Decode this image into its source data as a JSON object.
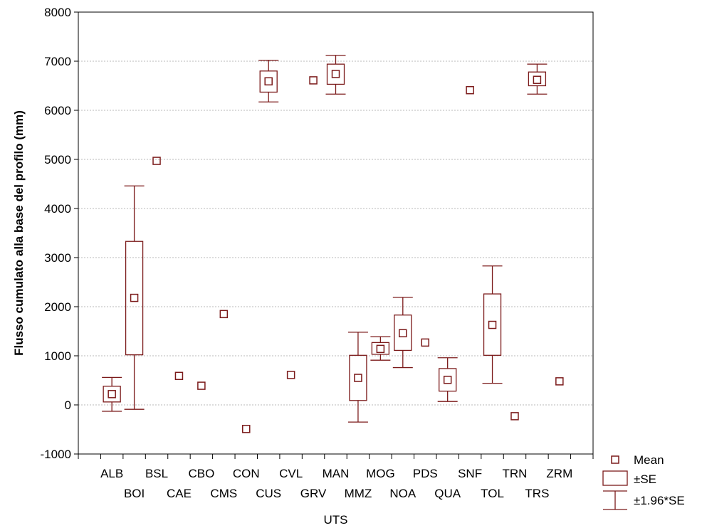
{
  "chart_data": {
    "type": "box",
    "xlabel": "UTS",
    "ylabel": "Flusso cumulato alla base del profilo (mm)",
    "ylim": [
      -1000,
      8000
    ],
    "yticks": [
      -1000,
      0,
      1000,
      2000,
      3000,
      4000,
      5000,
      6000,
      7000,
      8000
    ],
    "grid": true,
    "legend_position": "bottom-right",
    "legend": [
      {
        "label": "Mean",
        "symbol": "square"
      },
      {
        "label": "±SE",
        "symbol": "box"
      },
      {
        "label": "±1.96*SE",
        "symbol": "whisker"
      }
    ],
    "colors": {
      "series": "#7b1a1a",
      "grid": "#b8b8b8"
    },
    "categories": [
      "ALB",
      "BOI",
      "BSL",
      "CAE",
      "CBO",
      "CMS",
      "CON",
      "CUS",
      "CVL",
      "GRV",
      "MAN",
      "MMZ",
      "MOG",
      "NOA",
      "PDS",
      "QUA",
      "SNF",
      "TOL",
      "TRN",
      "TRS",
      "ZRM"
    ],
    "series": [
      {
        "values": [
          {
            "mean": 220,
            "se_low": 60,
            "se_high": 380,
            "ci_low": -130,
            "ci_high": 560
          },
          {
            "mean": 2180,
            "se_low": 1020,
            "se_high": 3330,
            "ci_low": -90,
            "ci_high": 4460
          },
          {
            "mean": 4970
          },
          {
            "mean": 590
          },
          {
            "mean": 390
          },
          {
            "mean": 1850
          },
          {
            "mean": -490
          },
          {
            "mean": 6590,
            "se_low": 6370,
            "se_high": 6800,
            "ci_low": 6170,
            "ci_high": 7020
          },
          {
            "mean": 610
          },
          {
            "mean": 6610
          },
          {
            "mean": 6740,
            "se_low": 6530,
            "se_high": 6940,
            "ci_low": 6330,
            "ci_high": 7120
          },
          {
            "mean": 550,
            "se_low": 90,
            "se_high": 1010,
            "ci_low": -350,
            "ci_high": 1480
          },
          {
            "mean": 1140,
            "se_low": 1030,
            "se_high": 1270,
            "ci_low": 910,
            "ci_high": 1390
          },
          {
            "mean": 1460,
            "se_low": 1110,
            "se_high": 1830,
            "ci_low": 760,
            "ci_high": 2190
          },
          {
            "mean": 1270
          },
          {
            "mean": 510,
            "se_low": 280,
            "se_high": 740,
            "ci_low": 70,
            "ci_high": 960
          },
          {
            "mean": 6410
          },
          {
            "mean": 1630,
            "se_low": 1010,
            "se_high": 2260,
            "ci_low": 440,
            "ci_high": 2830
          },
          {
            "mean": -230
          },
          {
            "mean": 6620,
            "se_low": 6500,
            "se_high": 6780,
            "ci_low": 6330,
            "ci_high": 6940
          },
          {
            "mean": 480
          }
        ]
      }
    ]
  }
}
